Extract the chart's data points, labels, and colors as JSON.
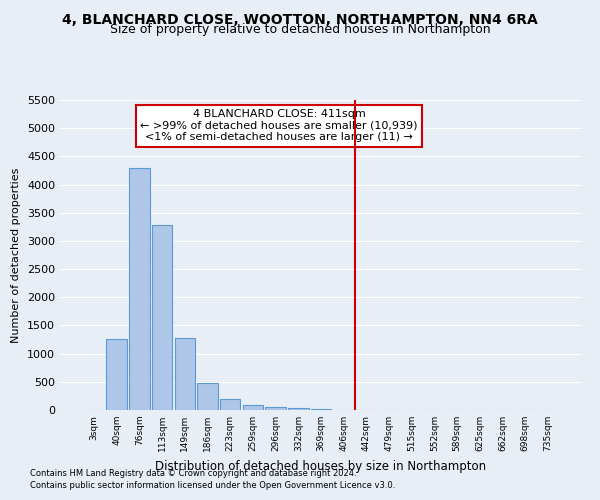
{
  "title_line1": "4, BLANCHARD CLOSE, WOOTTON, NORTHAMPTON, NN4 6RA",
  "title_line2": "Size of property relative to detached houses in Northampton",
  "xlabel": "Distribution of detached houses by size in Northampton",
  "ylabel": "Number of detached properties",
  "footnote1": "Contains HM Land Registry data © Crown copyright and database right 2024.",
  "footnote2": "Contains public sector information licensed under the Open Government Licence v3.0.",
  "bar_labels": [
    "3sqm",
    "40sqm",
    "76sqm",
    "113sqm",
    "149sqm",
    "186sqm",
    "223sqm",
    "259sqm",
    "296sqm",
    "332sqm",
    "369sqm",
    "406sqm",
    "442sqm",
    "479sqm",
    "515sqm",
    "552sqm",
    "589sqm",
    "625sqm",
    "662sqm",
    "698sqm",
    "735sqm"
  ],
  "bar_values": [
    0,
    1260,
    4300,
    3280,
    1280,
    480,
    200,
    90,
    55,
    35,
    20,
    0,
    0,
    0,
    0,
    0,
    0,
    0,
    0,
    0,
    0
  ],
  "bar_color": "#aec6e8",
  "bar_edge_color": "#5b9bd5",
  "vline_index": 11.5,
  "vline_color": "#cc0000",
  "annotation_title": "4 BLANCHARD CLOSE: 411sqm",
  "annotation_line1": "← >99% of detached houses are smaller (10,939)",
  "annotation_line2": "<1% of semi-detached houses are larger (11) →",
  "annotation_box_color": "#cc0000",
  "ylim": [
    0,
    5500
  ],
  "yticks": [
    0,
    500,
    1000,
    1500,
    3000,
    3500,
    4000,
    4500,
    5000,
    5500
  ],
  "bg_color": "#e8eef5",
  "plot_bg_color": "#e8eef5",
  "grid_color": "#ffffff",
  "title_fontsize": 10,
  "subtitle_fontsize": 9,
  "annot_fontsize": 8
}
